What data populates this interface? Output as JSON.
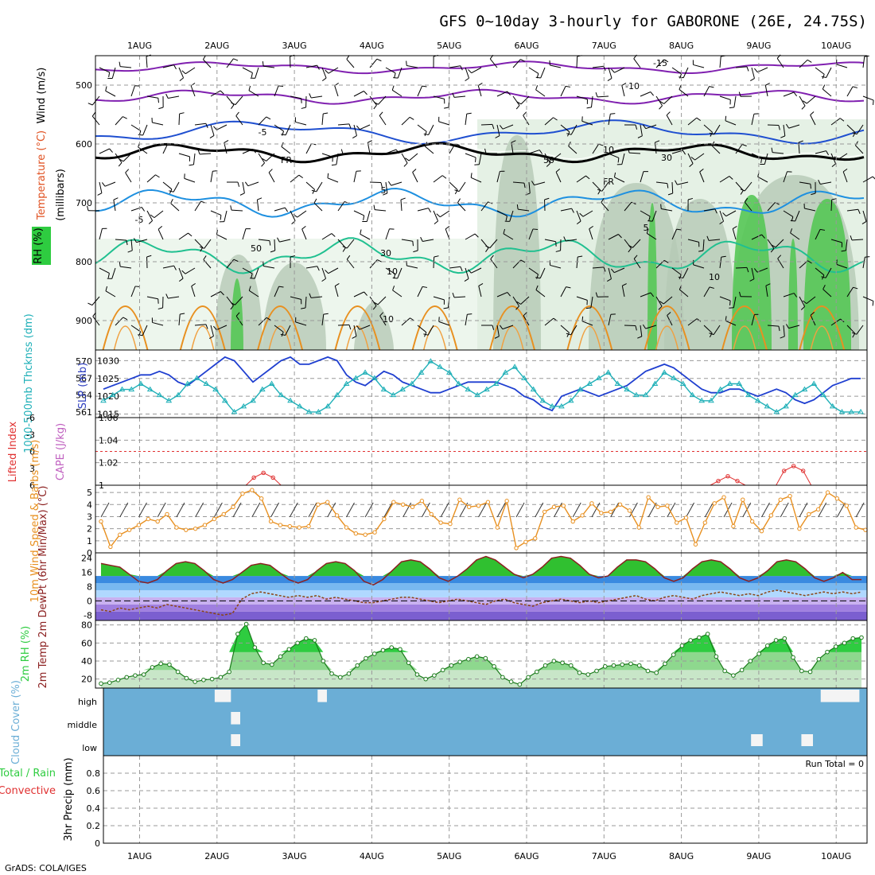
{
  "title": "GFS 0~10day 3-hourly for GABORONE (26E, 24.75S)",
  "credit": "GrADS: COLA/IGES",
  "colors": {
    "wind_line": "#1f3fd0",
    "thickness": "#20b0b8",
    "rh_fill": "#2ecc40",
    "cloud": "#6baed6",
    "lifted": "#e03030",
    "orange": "#f09030",
    "purple": "#8020b0"
  },
  "chart_data": [
    {
      "type": "contour",
      "panel": "upper-air",
      "ylabel_parts": [
        {
          "text": "Wind (m/s)",
          "color": "#000000"
        },
        {
          "text": "Temperature (°C)",
          "color": "#e05020"
        },
        {
          "text": "RH (%)",
          "color": "#2ecc40"
        },
        {
          "text": "(millibars)",
          "color": "#000000"
        }
      ],
      "y_ticks": [
        "500",
        "600",
        "700",
        "800",
        "900"
      ],
      "ylim": [
        450,
        950
      ],
      "contour_labels": [
        "-15",
        "-10",
        "-5",
        "FR",
        "-5",
        "5",
        "5",
        "10",
        "10",
        "10",
        "50",
        "30",
        "10",
        "30",
        "50",
        "FR"
      ]
    },
    {
      "type": "line",
      "panel": "slp-thickness",
      "ylabel_left": "1000-500mb Thcknss (dm)",
      "ylabel_right": "SLP (mb)",
      "left_ticks": [
        "570",
        "567",
        "564",
        "561"
      ],
      "left_ylim": [
        560,
        572
      ],
      "right_ticks": [
        "1030",
        "1025",
        "1020",
        "1015"
      ],
      "right_ylim": [
        1014,
        1033
      ],
      "series": [
        {
          "name": "SLP",
          "values": [
            1022,
            1023,
            1024,
            1025,
            1026,
            1026,
            1027,
            1026,
            1024,
            1023,
            1025,
            1027,
            1029,
            1031,
            1030,
            1027,
            1024,
            1026,
            1028,
            1030,
            1031,
            1029,
            1029,
            1030,
            1031,
            1030,
            1026,
            1024,
            1023,
            1025,
            1027,
            1026,
            1024,
            1023,
            1022,
            1021,
            1021,
            1022,
            1023,
            1024,
            1024,
            1024,
            1024,
            1023,
            1022,
            1020,
            1019,
            1017,
            1016,
            1020,
            1021,
            1022,
            1021,
            1020,
            1021,
            1022,
            1023,
            1025,
            1027,
            1028,
            1029,
            1028,
            1026,
            1024,
            1022,
            1021,
            1021,
            1022,
            1022,
            1021,
            1020,
            1021,
            1022,
            1021,
            1019,
            1018,
            1019,
            1021,
            1023,
            1024,
            1025,
            1025
          ]
        },
        {
          "name": "Thickness",
          "values": [
            563,
            564,
            565,
            565,
            566,
            565,
            564,
            563,
            564,
            566,
            567,
            566,
            565,
            563,
            561,
            562,
            563,
            565,
            566,
            564,
            563,
            562,
            561,
            561,
            562,
            564,
            566,
            567,
            568,
            567,
            565,
            564,
            565,
            566,
            568,
            570,
            569,
            568,
            566,
            565,
            564,
            565,
            566,
            568,
            569,
            567,
            565,
            563,
            562,
            562,
            563,
            565,
            566,
            567,
            568,
            566,
            565,
            564,
            564,
            566,
            568,
            567,
            566,
            564,
            563,
            563,
            565,
            566,
            566,
            564,
            563,
            562,
            561,
            562,
            564,
            565,
            566,
            564,
            562,
            561,
            561,
            561
          ]
        }
      ]
    },
    {
      "type": "line",
      "panel": "cape-lifted",
      "ylabel_left": "Lifted Index",
      "ylabel_right": "CAPE (J/kg)",
      "left_ticks": [
        "-6",
        "-3",
        "0",
        "3",
        "6"
      ],
      "left_ylim": [
        -6,
        6
      ],
      "right_ticks": [
        "1.06",
        "1.04",
        "1.02",
        "1"
      ],
      "right_ylim": [
        1,
        1.06
      ],
      "cape_bumps": [
        {
          "day": 2.6,
          "peak": 1.011
        },
        {
          "day": 8.6,
          "peak": 1.008
        },
        {
          "day": 9.45,
          "peak": 1.017
        }
      ],
      "lifted_index_reference": 0
    },
    {
      "type": "line",
      "panel": "wind10m",
      "ylabel": "10m Wind Speed & Barbs (m/s)",
      "y_ticks": [
        "0",
        "1",
        "2",
        "3",
        "4",
        "5"
      ],
      "ylim": [
        0,
        5.6
      ],
      "values": [
        2.6,
        0.5,
        1.5,
        1.9,
        2.3,
        2.8,
        2.6,
        3.2,
        2.1,
        1.9,
        2.0,
        2.3,
        2.8,
        3.2,
        3.8,
        4.9,
        5.2,
        4.5,
        2.6,
        2.3,
        2.2,
        2.1,
        2.2,
        4.0,
        4.2,
        3.1,
        2.1,
        1.6,
        1.5,
        1.7,
        2.8,
        4.2,
        4.0,
        3.8,
        4.3,
        3.2,
        2.5,
        2.4,
        4.4,
        3.8,
        3.9,
        4.2,
        2.1,
        4.3,
        0.4,
        0.9,
        1.2,
        3.4,
        3.8,
        3.9,
        2.6,
        3.1,
        4.1,
        3.3,
        3.4,
        4.0,
        3.5,
        2.1,
        4.6,
        3.8,
        3.9,
        2.5,
        2.9,
        0.7,
        2.5,
        4.1,
        4.6,
        2.2,
        4.4,
        2.6,
        1.8,
        3.1,
        4.4,
        4.7,
        2.0,
        3.2,
        3.6,
        5.0,
        4.5,
        3.9,
        2.1,
        1.9
      ]
    },
    {
      "type": "area",
      "panel": "temperature",
      "ylabel": "2m Temp 2m DewPt (6hr Min/Max) (°C)",
      "y_ticks": [
        "24",
        "16",
        "8",
        "0",
        "-8"
      ],
      "ylim": [
        -11,
        27
      ],
      "temp_values": [
        21,
        20,
        19,
        15,
        11,
        10,
        12,
        17,
        21,
        22,
        21,
        17,
        12,
        10,
        12,
        16,
        20,
        21,
        20,
        16,
        12,
        10,
        12,
        17,
        21,
        22,
        21,
        17,
        11,
        9,
        12,
        17,
        22,
        23,
        22,
        18,
        13,
        11,
        14,
        18,
        23,
        25,
        23,
        19,
        15,
        13,
        15,
        19,
        24,
        25,
        24,
        20,
        15,
        13,
        14,
        19,
        23,
        23,
        22,
        18,
        13,
        11,
        13,
        18,
        22,
        23,
        22,
        18,
        13,
        11,
        13,
        17,
        22,
        23,
        22,
        18,
        13,
        11,
        13,
        16,
        12,
        12
      ],
      "dewpoint_values": [
        -5,
        -6,
        -4,
        -5,
        -4,
        -3,
        -4,
        -2,
        -3,
        -4,
        -5,
        -6,
        -7,
        -8,
        -7,
        1,
        4,
        5,
        4,
        3,
        2,
        3,
        2,
        3,
        1,
        2,
        1,
        0,
        -1,
        -1,
        0,
        1,
        2,
        2,
        1,
        0,
        -1,
        0,
        1,
        0,
        -1,
        -2,
        0,
        1,
        -1,
        -2,
        -3,
        -1,
        0,
        1,
        0,
        -1,
        0,
        -1,
        0,
        1,
        2,
        3,
        1,
        0,
        2,
        3,
        2,
        1,
        3,
        4,
        5,
        4,
        3,
        4,
        3,
        5,
        6,
        5,
        4,
        3,
        4,
        5,
        4,
        5,
        4,
        5
      ]
    },
    {
      "type": "area",
      "panel": "rh2m",
      "ylabel": "2m RH (%)",
      "y_ticks": [
        "80",
        "60",
        "40",
        "20"
      ],
      "ylim": [
        10,
        85
      ],
      "values": [
        15,
        16,
        19,
        22,
        24,
        25,
        33,
        37,
        36,
        28,
        21,
        17,
        19,
        20,
        22,
        28,
        70,
        81,
        55,
        38,
        36,
        45,
        53,
        60,
        65,
        63,
        40,
        26,
        22,
        26,
        35,
        43,
        48,
        52,
        55,
        53,
        38,
        25,
        20,
        24,
        30,
        35,
        39,
        42,
        45,
        43,
        34,
        22,
        17,
        14,
        22,
        28,
        35,
        40,
        38,
        35,
        27,
        25,
        29,
        34,
        35,
        36,
        37,
        35,
        29,
        27,
        37,
        47,
        57,
        63,
        66,
        70,
        45,
        29,
        24,
        30,
        40,
        48,
        57,
        63,
        65,
        44,
        29,
        28,
        42,
        50,
        56,
        60,
        65,
        66
      ]
    },
    {
      "type": "heatmap",
      "panel": "cloud",
      "ylabel": "Cloud Cover (%)",
      "rows": [
        "high",
        "middle",
        "low"
      ],
      "clear_patches": [
        {
          "row": "high",
          "from_day": 1.97,
          "to_day": 2.18
        },
        {
          "row": "high",
          "from_day": 3.3,
          "to_day": 3.42
        },
        {
          "row": "high",
          "from_day": 9.8,
          "to_day": 10.3
        },
        {
          "row": "middle",
          "from_day": 2.18,
          "to_day": 2.3
        },
        {
          "row": "low",
          "from_day": 2.18,
          "to_day": 2.3
        },
        {
          "row": "low",
          "from_day": 8.9,
          "to_day": 9.05
        },
        {
          "row": "low",
          "from_day": 9.55,
          "to_day": 9.7
        }
      ]
    },
    {
      "type": "bar",
      "panel": "precip",
      "ylabel_parts": [
        {
          "text": "3hr Precip (mm)",
          "color": "#000000"
        },
        {
          "text": "Total / Rain",
          "color": "#2ecc40"
        },
        {
          "text": "Convective",
          "color": "#e03030"
        }
      ],
      "y_ticks": [
        "0",
        "0.2",
        "0.4",
        "0.6",
        "0.8"
      ],
      "ylim": [
        0,
        1
      ],
      "values": [],
      "run_total_label": "Run Total = 0"
    }
  ],
  "days": [
    "1AUG",
    "2AUG",
    "3AUG",
    "4AUG",
    "5AUG",
    "6AUG",
    "7AUG",
    "8AUG",
    "9AUG",
    "10AUG"
  ]
}
